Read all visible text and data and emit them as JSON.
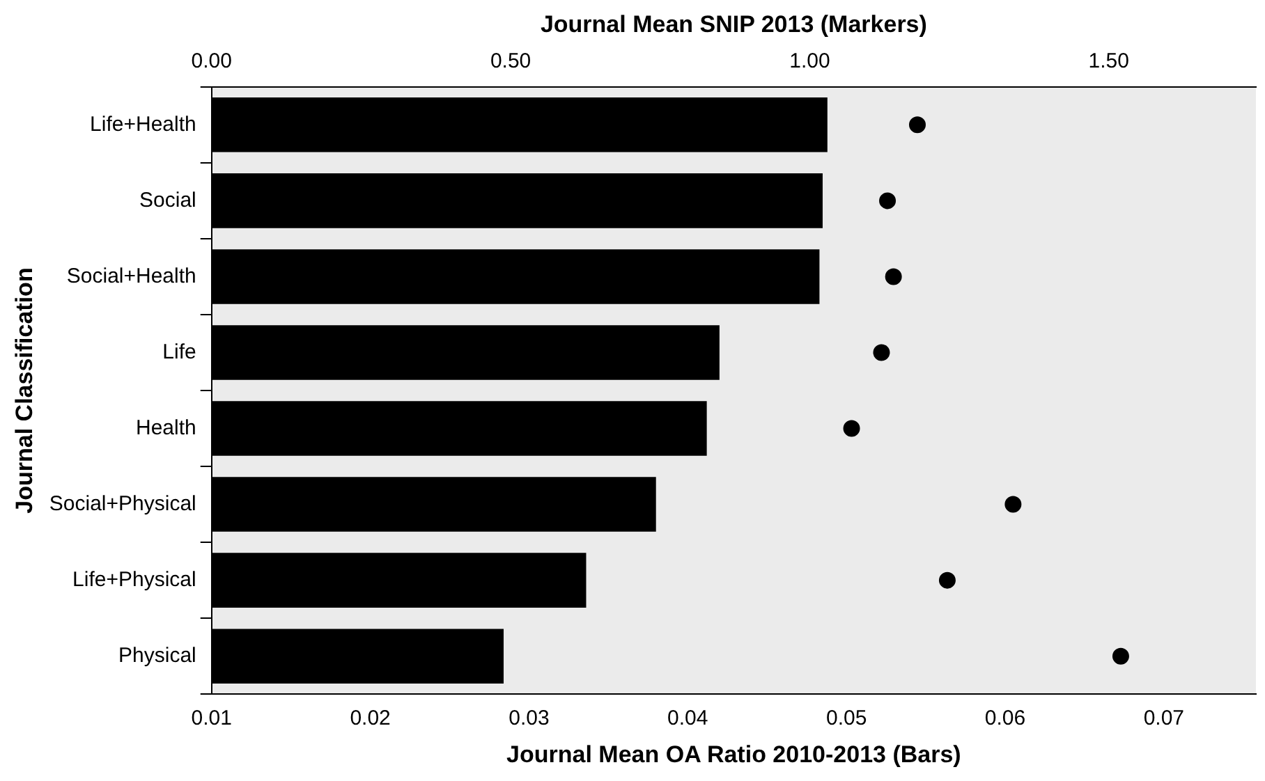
{
  "chart_data": {
    "type": "bar",
    "orientation": "horizontal",
    "xlabel": "Journal Mean OA Ratio 2010-2013 (Bars)",
    "x2label": "Journal Mean SNIP 2013 (Markers)",
    "ylabel": "Journal Classification",
    "categories": [
      "Life+Health",
      "Social",
      "Social+Health",
      "Life",
      "Health",
      "Social+Physical",
      "Life+Physical",
      "Physical"
    ],
    "series": [
      {
        "type": "bar",
        "color": "#000000",
        "values": [
          0.0488,
          0.0485,
          0.0483,
          0.042,
          0.0412,
          0.038,
          0.0336,
          0.0284
        ]
      },
      {
        "type": "scatter",
        "axis": "x2",
        "color": "#000000",
        "values": [
          1.18,
          1.13,
          1.14,
          1.12,
          1.07,
          1.34,
          1.23,
          1.52
        ]
      }
    ],
    "xlim": [
      0.01,
      0.0758
    ],
    "xticks": [
      0.01,
      0.02,
      0.03,
      0.04,
      0.05,
      0.06,
      0.07
    ],
    "x2lim": [
      0,
      1.746
    ],
    "x2ticks": [
      {
        "value": 0,
        "label": "0.00"
      },
      {
        "value": 0.5,
        "label": "0.50"
      },
      {
        "value": 1,
        "label": "1.00"
      },
      {
        "value": 1.5,
        "label": "1.50"
      }
    ],
    "grid": false,
    "legend": false,
    "marker": "circle"
  }
}
